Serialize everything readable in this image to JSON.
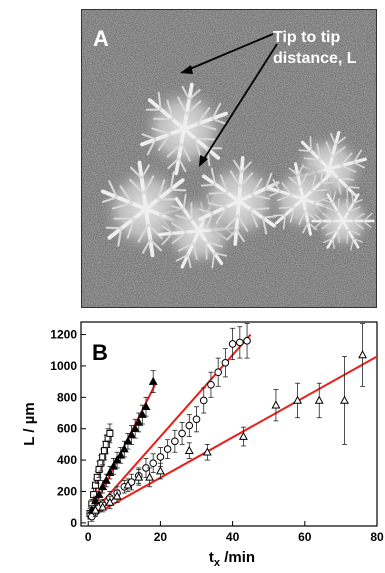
{
  "micrograph": {
    "panel_label": "A",
    "annotation_line1": "Tip to tip",
    "annotation_line2": "distance, L"
  },
  "chart_data": {
    "type": "scatter",
    "panel_label": "B",
    "xlabel_main": "t",
    "xlabel_sub": "x",
    "xlabel_rest": " /min",
    "ylabel": "L / µm",
    "xlim": [
      -2,
      80
    ],
    "ylim": [
      -20,
      1280
    ],
    "xticks": [
      0,
      20,
      40,
      60,
      80
    ],
    "yticks": [
      0,
      200,
      400,
      600,
      800,
      1000,
      1200
    ],
    "fit_color": "#e8201c",
    "series": [
      {
        "marker": "square",
        "x": [
          0.5,
          1,
          1.5,
          2,
          2.5,
          3,
          3.5,
          4,
          4.5,
          5,
          5.5,
          6
        ],
        "y": [
          60,
          120,
          180,
          240,
          290,
          340,
          380,
          420,
          460,
          500,
          540,
          570
        ],
        "err": [
          30,
          30,
          40,
          40,
          40,
          50,
          50,
          50,
          60,
          60,
          60,
          60
        ],
        "fit": [
          [
            0,
            20
          ],
          [
            6.5,
            600
          ]
        ]
      },
      {
        "marker": "triangle-filled",
        "x": [
          1,
          2,
          3,
          4,
          5,
          6,
          7,
          8,
          9,
          10,
          11,
          12,
          13,
          14,
          15,
          16,
          18
        ],
        "y": [
          80,
          140,
          180,
          230,
          270,
          320,
          360,
          400,
          430,
          470,
          520,
          560,
          600,
          640,
          690,
          740,
          900
        ],
        "err": [
          30,
          30,
          40,
          40,
          40,
          40,
          50,
          50,
          50,
          50,
          50,
          60,
          60,
          60,
          60,
          60,
          70
        ],
        "fit": [
          [
            0,
            30
          ],
          [
            18.5,
            880
          ]
        ]
      },
      {
        "marker": "circle",
        "x": [
          1,
          2,
          3,
          4,
          6,
          8,
          10,
          12,
          14,
          16,
          18,
          20,
          22,
          24,
          26,
          28,
          30,
          32,
          34,
          36,
          38,
          40,
          42,
          44
        ],
        "y": [
          40,
          70,
          100,
          120,
          160,
          190,
          230,
          260,
          300,
          350,
          380,
          420,
          470,
          520,
          570,
          620,
          660,
          780,
          880,
          960,
          1020,
          1140,
          1150,
          1160
        ],
        "err": [
          30,
          30,
          30,
          30,
          40,
          40,
          40,
          50,
          50,
          60,
          60,
          60,
          60,
          70,
          70,
          70,
          80,
          80,
          80,
          90,
          90,
          100,
          100,
          110
        ],
        "fit": [
          [
            0,
            30
          ],
          [
            45,
            1200
          ]
        ]
      },
      {
        "marker": "triangle-open",
        "x": [
          2,
          4,
          6,
          8,
          11,
          14,
          17,
          20,
          28,
          33,
          43,
          52,
          58,
          64,
          71,
          76
        ],
        "y": [
          80,
          100,
          130,
          170,
          240,
          290,
          290,
          330,
          460,
          450,
          550,
          750,
          780,
          780,
          780,
          1070
        ],
        "err": [
          30,
          30,
          40,
          40,
          40,
          50,
          60,
          50,
          50,
          50,
          60,
          100,
          110,
          110,
          280,
          200
        ],
        "fit": [
          [
            0,
            30
          ],
          [
            80,
            1060
          ]
        ]
      }
    ]
  }
}
